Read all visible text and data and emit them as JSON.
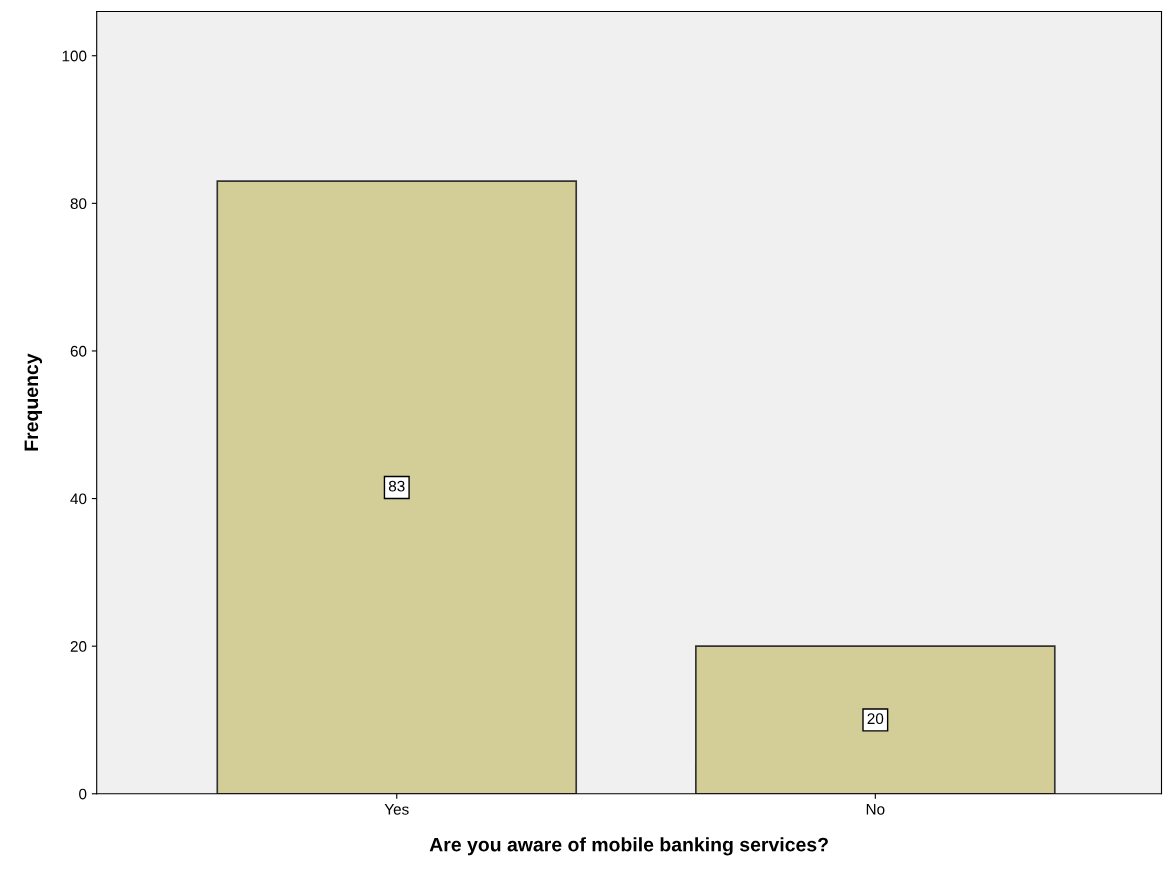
{
  "chart_data": {
    "type": "bar",
    "xlabel": "Are you aware of mobile banking services?",
    "ylabel": "Frequency",
    "categories": [
      "Yes",
      "No"
    ],
    "values": [
      83,
      20
    ],
    "color": "#d3ce97",
    "ylim": [
      0,
      106
    ],
    "yticks": [
      0,
      20,
      40,
      60,
      80,
      100
    ],
    "grid": false,
    "data_labels": true
  }
}
